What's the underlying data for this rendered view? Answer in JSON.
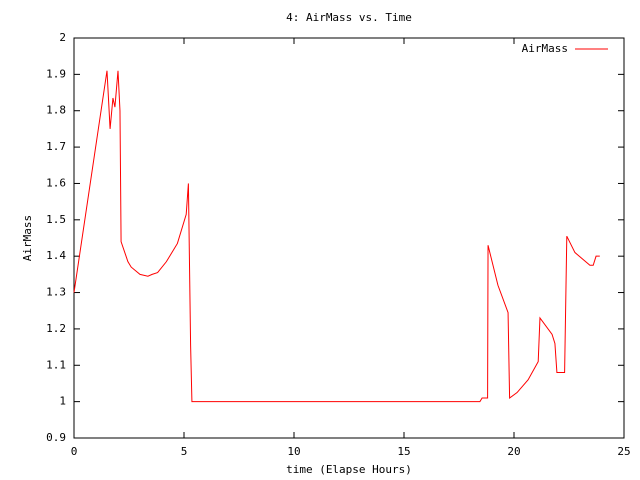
{
  "chart_data": {
    "type": "line",
    "title": "4: AirMass vs. Time",
    "xlabel": "time (Elapse Hours)",
    "ylabel": "AirMass",
    "xlim": [
      0,
      25
    ],
    "ylim": [
      0.9,
      2
    ],
    "xticks": [
      0,
      5,
      10,
      15,
      20,
      25
    ],
    "yticks": [
      0.9,
      1,
      1.1,
      1.2,
      1.3,
      1.4,
      1.5,
      1.6,
      1.7,
      1.8,
      1.9,
      2
    ],
    "grid": false,
    "legend": "top-right",
    "x": [
      0,
      1.5,
      1.64,
      1.77,
      1.86,
      2.0,
      2.09,
      2.14,
      2.45,
      2.6,
      3.0,
      3.36,
      3.55,
      3.8,
      4.2,
      4.7,
      5.1,
      5.2,
      5.3,
      5.36,
      18.45,
      18.55,
      18.8,
      18.82,
      19.27,
      19.73,
      19.8,
      20.14,
      20.64,
      21.1,
      21.18,
      21.73,
      21.86,
      21.95,
      22.3,
      22.4,
      22.77,
      23.45,
      23.6,
      23.73,
      23.9
    ],
    "series": [
      {
        "name": "AirMass",
        "color": "#ff0000",
        "values": [
          1.3,
          1.91,
          1.75,
          1.835,
          1.81,
          1.91,
          1.8,
          1.44,
          1.385,
          1.37,
          1.35,
          1.345,
          1.35,
          1.355,
          1.385,
          1.435,
          1.515,
          1.6,
          1.155,
          1.0,
          1.0,
          1.01,
          1.01,
          1.43,
          1.32,
          1.245,
          1.01,
          1.025,
          1.06,
          1.11,
          1.23,
          1.185,
          1.16,
          1.08,
          1.08,
          1.455,
          1.41,
          1.375,
          1.375,
          1.4,
          1.4
        ]
      }
    ]
  }
}
